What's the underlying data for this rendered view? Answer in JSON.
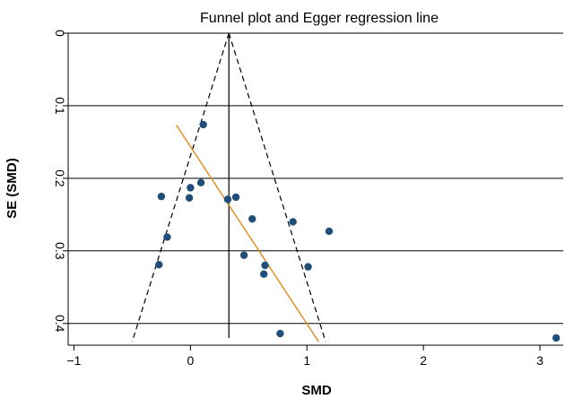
{
  "chart_data": {
    "type": "scatter",
    "title": "Funnel plot and Egger regression line",
    "xlabel": "SMD",
    "ylabel": "SE (SMD)",
    "xlim": [
      -1.05,
      3.2
    ],
    "ylim": [
      0,
      0.43
    ],
    "y_reversed": true,
    "x_ticks": [
      -1,
      0,
      1,
      2,
      3
    ],
    "x_tick_labels": [
      "−1",
      "0",
      "1",
      "2",
      "3"
    ],
    "y_ticks": [
      0,
      0.1,
      0.2,
      0.3,
      0.4
    ],
    "y_tick_labels": [
      "0",
      "0.1",
      "0.2",
      "0.3",
      "0.4"
    ],
    "y_gridlines": true,
    "pooled_smd": 0.33,
    "funnel_se_max": 0.425,
    "funnel_bounds": {
      "left_at_max_se": -0.5,
      "right_at_max_se": 1.16
    },
    "egger_line": {
      "x": [
        -0.12,
        1.1
      ],
      "y": [
        0.127,
        0.425
      ]
    },
    "points": [
      {
        "x": 0.11,
        "y": 0.126
      },
      {
        "x": -0.25,
        "y": 0.225
      },
      {
        "x": 0.0,
        "y": 0.213
      },
      {
        "x": -0.01,
        "y": 0.227
      },
      {
        "x": 0.09,
        "y": 0.206
      },
      {
        "x": 0.32,
        "y": 0.229
      },
      {
        "x": 0.39,
        "y": 0.226
      },
      {
        "x": 0.53,
        "y": 0.256
      },
      {
        "x": 0.88,
        "y": 0.26
      },
      {
        "x": 1.19,
        "y": 0.273
      },
      {
        "x": -0.2,
        "y": 0.281
      },
      {
        "x": -0.27,
        "y": 0.319
      },
      {
        "x": 0.46,
        "y": 0.306
      },
      {
        "x": 0.64,
        "y": 0.32
      },
      {
        "x": 0.63,
        "y": 0.332
      },
      {
        "x": 1.01,
        "y": 0.322
      },
      {
        "x": 0.77,
        "y": 0.414
      },
      {
        "x": 3.14,
        "y": 0.42
      }
    ],
    "colors": {
      "points": "#1f4e79",
      "egger_line": "#e0891a",
      "funnel": "#000000",
      "grid": "#000000"
    }
  }
}
